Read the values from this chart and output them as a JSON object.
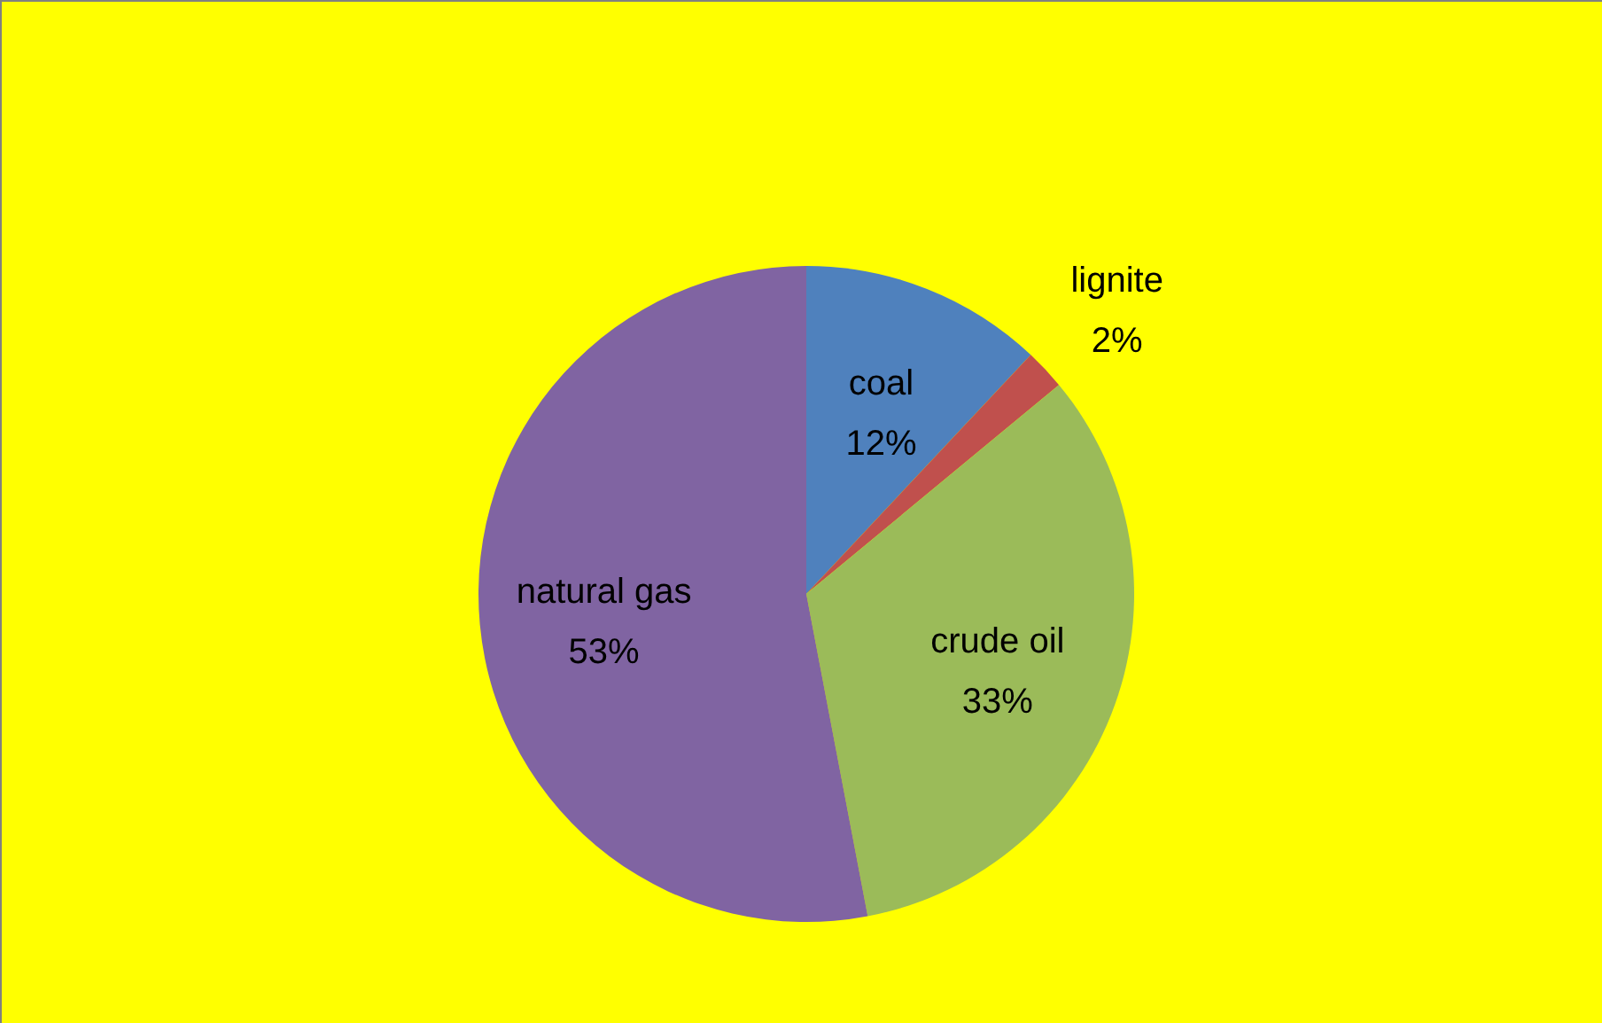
{
  "chart_data": {
    "type": "pie",
    "categories": [
      "coal",
      "lignite",
      "crude oil",
      "natural gas"
    ],
    "values": [
      12,
      2,
      33,
      53
    ],
    "value_labels": [
      "12%",
      "2%",
      "33%",
      "53%"
    ],
    "colors": [
      "#4f81bd",
      "#c0504d",
      "#9bbb59",
      "#8064a2"
    ]
  }
}
